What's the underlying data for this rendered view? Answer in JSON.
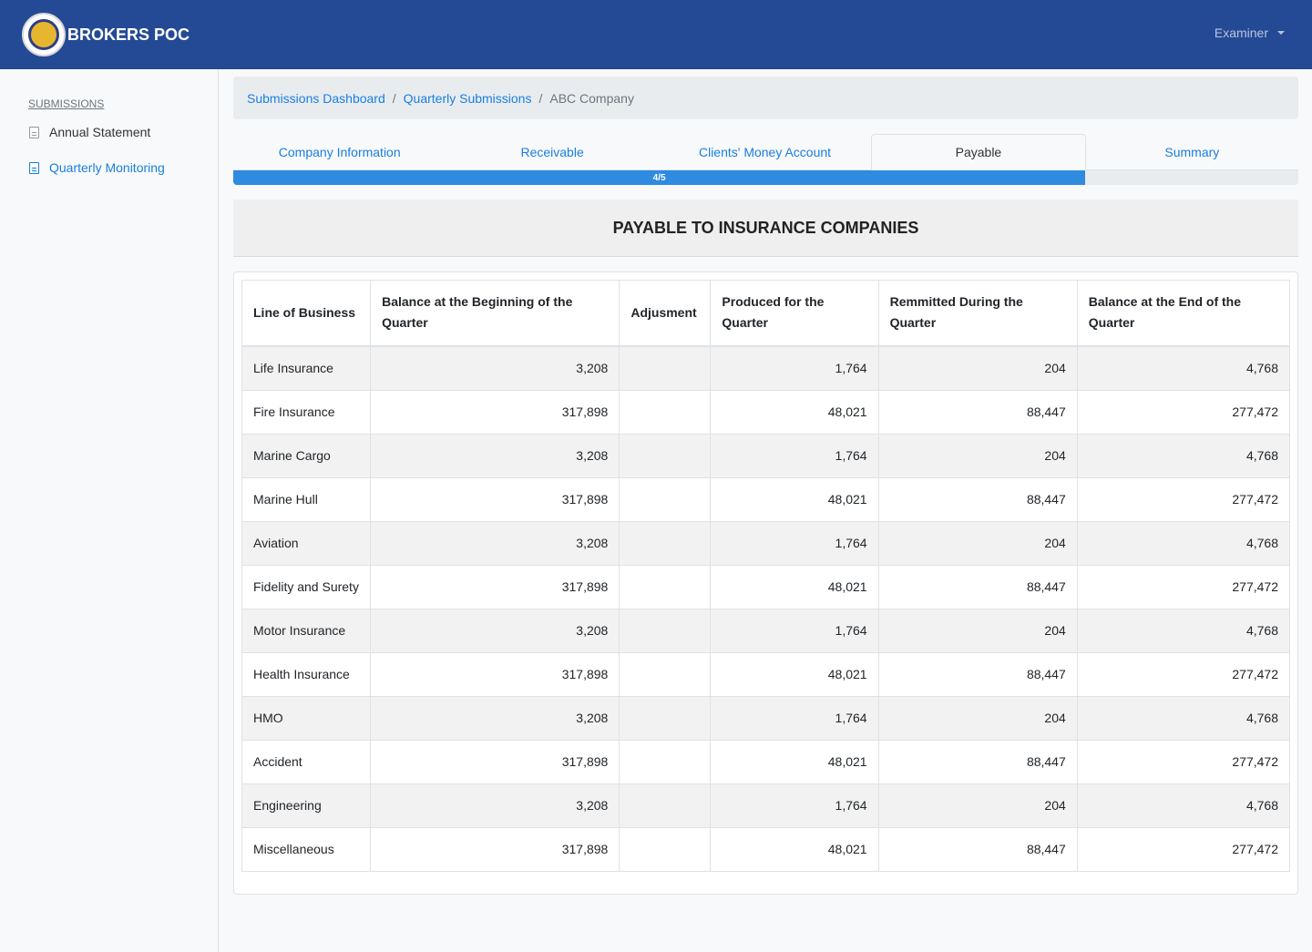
{
  "brand": {
    "title": "BROKERS POC"
  },
  "user_menu": {
    "label": "Examiner"
  },
  "sidebar": {
    "heading": "SUBMISSIONS",
    "items": [
      {
        "label": "Annual Statement"
      },
      {
        "label": "Quarterly Monitoring"
      }
    ]
  },
  "breadcrumb": {
    "items": [
      "Submissions Dashboard",
      "Quarterly Submissions"
    ],
    "current": "ABC Company",
    "separator": "/"
  },
  "tabs": [
    "Company Information",
    "Receivable",
    "Clients' Money Account",
    "Payable",
    "Summary"
  ],
  "active_tab": "Payable",
  "progress": {
    "label": "4/5",
    "value": 0.8
  },
  "section": {
    "title": "PAYABLE TO INSURANCE COMPANIES"
  },
  "table": {
    "headers": [
      "Line of Business",
      "Balance at the Beginning of the Quarter",
      "Adjusment",
      "Produced for the Quarter",
      "Remmitted During the Quarter",
      "Balance at the End of the Quarter"
    ],
    "rows": [
      [
        "Life Insurance",
        "3,208",
        "",
        "1,764",
        "204",
        "4,768"
      ],
      [
        "Fire Insurance",
        "317,898",
        "",
        "48,021",
        "88,447",
        "277,472"
      ],
      [
        "Marine Cargo",
        "3,208",
        "",
        "1,764",
        "204",
        "4,768"
      ],
      [
        "Marine Hull",
        "317,898",
        "",
        "48,021",
        "88,447",
        "277,472"
      ],
      [
        "Aviation",
        "3,208",
        "",
        "1,764",
        "204",
        "4,768"
      ],
      [
        "Fidelity and Surety",
        "317,898",
        "",
        "48,021",
        "88,447",
        "277,472"
      ],
      [
        "Motor Insurance",
        "3,208",
        "",
        "1,764",
        "204",
        "4,768"
      ],
      [
        "Health Insurance",
        "317,898",
        "",
        "48,021",
        "88,447",
        "277,472"
      ],
      [
        "HMO",
        "3,208",
        "",
        "1,764",
        "204",
        "4,768"
      ],
      [
        "Accident",
        "317,898",
        "",
        "48,021",
        "88,447",
        "277,472"
      ],
      [
        "Engineering",
        "3,208",
        "",
        "1,764",
        "204",
        "4,768"
      ],
      [
        "Miscellaneous",
        "317,898",
        "",
        "48,021",
        "88,447",
        "277,472"
      ]
    ]
  },
  "colors": {
    "navbar": "#244a95",
    "link": "#1a7fe0",
    "progress": "#2e8be0"
  },
  "icons": {
    "sidebar_item": "document-icon",
    "dropdown": "caret-down-icon"
  }
}
